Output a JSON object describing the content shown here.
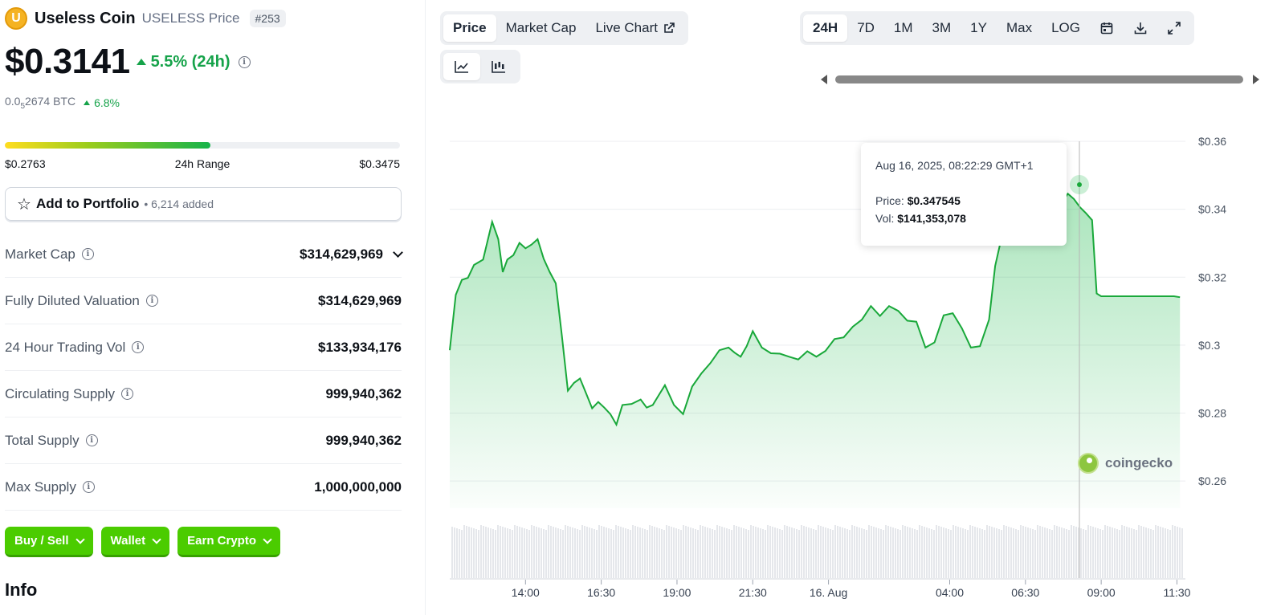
{
  "coin": {
    "logo_letter": "U",
    "name": "Useless Coin",
    "subtitle": "USELESS Price",
    "rank": "#253",
    "price": "$0.3141",
    "change_24h": "5.5% (24h)",
    "btc_prefix": "0.0",
    "btc_sub": "5",
    "btc_rest": "2674 BTC",
    "btc_change": "6.8%"
  },
  "range": {
    "low": "$0.2763",
    "label": "24h Range",
    "high": "$0.3475",
    "position": 0.52
  },
  "portfolio": {
    "label": "Add to Portfolio",
    "count": "• 6,214 added"
  },
  "stats": [
    {
      "label": "Market Cap",
      "value": "$314,629,969"
    },
    {
      "label": "Fully Diluted Valuation",
      "value": "$314,629,969"
    },
    {
      "label": "24 Hour Trading Vol",
      "value": "$133,934,176"
    },
    {
      "label": "Circulating Supply",
      "value": "999,940,362"
    },
    {
      "label": "Total Supply",
      "value": "999,940,362"
    },
    {
      "label": "Max Supply",
      "value": "1,000,000,000"
    }
  ],
  "buttons": {
    "buy_sell": "Buy / Sell",
    "wallet": "Wallet",
    "earn": "Earn Crypto"
  },
  "info_heading": "Info",
  "chart_tabs": {
    "price": "Price",
    "market_cap": "Market Cap",
    "live_chart": "Live Chart"
  },
  "time_ranges": {
    "h24": "24H",
    "d7": "7D",
    "m1": "1M",
    "m3": "3M",
    "y1": "1Y",
    "max": "Max",
    "log": "LOG"
  },
  "tooltip": {
    "date": "Aug 16, 2025, 08:22:29 GMT+1",
    "price_label": "Price:",
    "price_value": "$0.347545",
    "vol_label": "Vol:",
    "vol_value": "$141,353,078"
  },
  "watermark": "coingecko",
  "colors": {
    "up": "#16a34a",
    "line": "#19a83a",
    "button": "#4bcc00"
  },
  "chart_data": {
    "type": "area",
    "y_ticks": [
      "$0.36",
      "$0.34",
      "$0.32",
      "$0.3",
      "$0.28",
      "$0.26"
    ],
    "ylim": [
      0.252,
      0.36
    ],
    "x_ticks": [
      "14:00",
      "16:30",
      "19:00",
      "21:30",
      "16. Aug",
      "04:00",
      "06:30",
      "09:00",
      "11:30"
    ],
    "x_tick_hours": [
      14,
      16.5,
      19,
      21.5,
      24,
      28,
      30.5,
      33,
      35.5
    ],
    "xlim": [
      11.5,
      35.7
    ],
    "series": [
      {
        "x": [
          11.5,
          11.7,
          11.9,
          12.1,
          12.3,
          12.6,
          12.9,
          13.1,
          13.25,
          13.4,
          13.6,
          13.8,
          14.0,
          14.2,
          14.4,
          14.6,
          14.8,
          15.0,
          15.2,
          15.4,
          15.6,
          15.8,
          16.0,
          16.2,
          16.4,
          16.6,
          16.8,
          17.0,
          17.2,
          17.5,
          17.8,
          18.0,
          18.2,
          18.4,
          18.6,
          18.9,
          19.2,
          19.5,
          19.8,
          20.1,
          20.4,
          20.7,
          20.9,
          21.1,
          21.3,
          21.5,
          21.8,
          22.1,
          22.4,
          22.7,
          23.0,
          23.3,
          23.6,
          23.9,
          24.2,
          24.5,
          24.8,
          25.1,
          25.4,
          25.7,
          26.0,
          26.3,
          26.6,
          26.9,
          27.2,
          27.5,
          27.8,
          28.1,
          28.4,
          28.7,
          29.0,
          29.3,
          29.5,
          29.7,
          29.9,
          30.1,
          30.3,
          30.5,
          30.7,
          30.9,
          31.1,
          31.3,
          31.5,
          31.7,
          31.9,
          32.1,
          32.3,
          32.5,
          32.7,
          32.85,
          33.0,
          33.2,
          33.4,
          33.6,
          33.8,
          34.0,
          34.2,
          34.4,
          34.6,
          34.8,
          35.0,
          35.2,
          35.4,
          35.6
        ],
        "y": [
          0.2985,
          0.3148,
          0.3192,
          0.3198,
          0.3236,
          0.3252,
          0.3363,
          0.3312,
          0.3215,
          0.3252,
          0.3265,
          0.3301,
          0.3285,
          0.3296,
          0.3312,
          0.3254,
          0.3215,
          0.3182,
          0.3028,
          0.2866,
          0.2889,
          0.2902,
          0.2858,
          0.2814,
          0.2833,
          0.2816,
          0.2797,
          0.2766,
          0.2824,
          0.2827,
          0.284,
          0.2816,
          0.2824,
          0.2853,
          0.2882,
          0.2824,
          0.2797,
          0.2878,
          0.2916,
          0.2947,
          0.2985,
          0.2993,
          0.2978,
          0.2966,
          0.2997,
          0.3041,
          0.2993,
          0.2976,
          0.2975,
          0.2966,
          0.2958,
          0.2982,
          0.2966,
          0.2983,
          0.3018,
          0.3023,
          0.3054,
          0.3075,
          0.3115,
          0.3086,
          0.3115,
          0.3101,
          0.3072,
          0.3069,
          0.2993,
          0.3008,
          0.3088,
          0.3094,
          0.305,
          0.2993,
          0.2997,
          0.3075,
          0.3233,
          0.3312,
          0.3363,
          0.3398,
          0.3355,
          0.3385,
          0.3463,
          0.348,
          0.3395,
          0.338,
          0.3411,
          0.3419,
          0.3446,
          0.343,
          0.3406,
          0.3388,
          0.3368,
          0.3152,
          0.3144,
          0.3144,
          0.3144,
          0.3144,
          0.3144,
          0.3144,
          0.3144,
          0.3144,
          0.3144,
          0.3144,
          0.3144,
          0.3144,
          0.3144,
          0.3141
        ]
      }
    ],
    "grid": true,
    "legend": "none"
  }
}
